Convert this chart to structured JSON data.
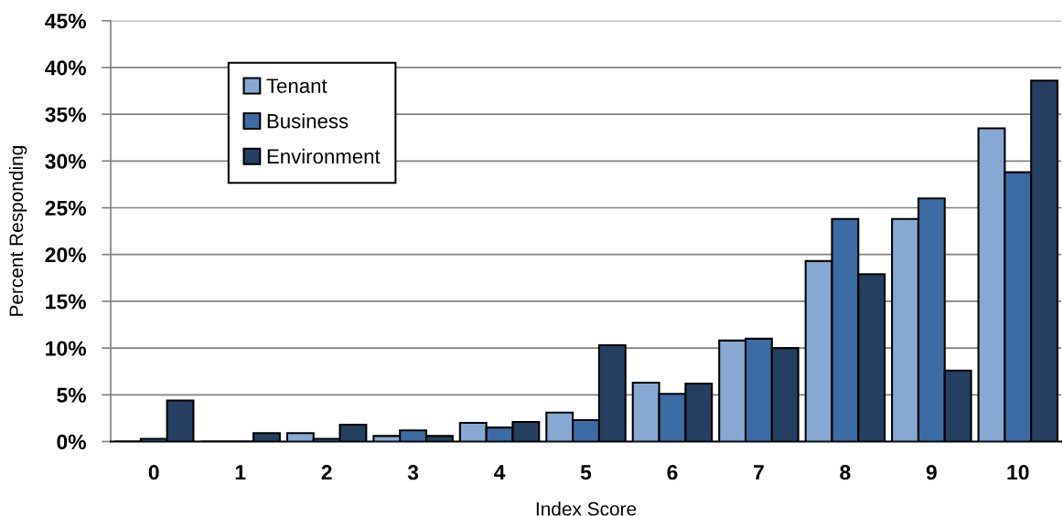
{
  "chart_data": {
    "type": "bar",
    "xlabel": "Index Score",
    "ylabel": "Percent Responding",
    "categories": [
      "0",
      "1",
      "2",
      "3",
      "4",
      "5",
      "6",
      "7",
      "8",
      "9",
      "10"
    ],
    "series": [
      {
        "name": "Tenant",
        "color": "#87a8d3",
        "values": [
          0,
          0,
          0.9,
          0.6,
          2.0,
          3.1,
          6.3,
          10.8,
          19.3,
          23.8,
          33.5
        ]
      },
      {
        "name": "Business",
        "color": "#3d6ba3",
        "values": [
          0.3,
          0,
          0.3,
          1.2,
          1.5,
          2.3,
          5.1,
          11.0,
          23.8,
          26.0,
          28.8
        ]
      },
      {
        "name": "Environment",
        "color": "#243f60",
        "values": [
          4.4,
          0.9,
          1.8,
          0.6,
          2.1,
          10.3,
          6.2,
          10.0,
          17.9,
          7.6,
          38.6
        ]
      }
    ],
    "ylim": [
      0,
      45
    ],
    "yticks": [
      {
        "value": 0,
        "label": "0%"
      },
      {
        "value": 5,
        "label": "5%"
      },
      {
        "value": 10,
        "label": "10%"
      },
      {
        "value": 15,
        "label": "15%"
      },
      {
        "value": 20,
        "label": "20%"
      },
      {
        "value": 25,
        "label": "25%"
      },
      {
        "value": 30,
        "label": "30%"
      },
      {
        "value": 35,
        "label": "35%"
      },
      {
        "value": 40,
        "label": "40%"
      },
      {
        "value": 45,
        "label": "45%"
      }
    ],
    "grid": "y",
    "legend": "top left"
  }
}
